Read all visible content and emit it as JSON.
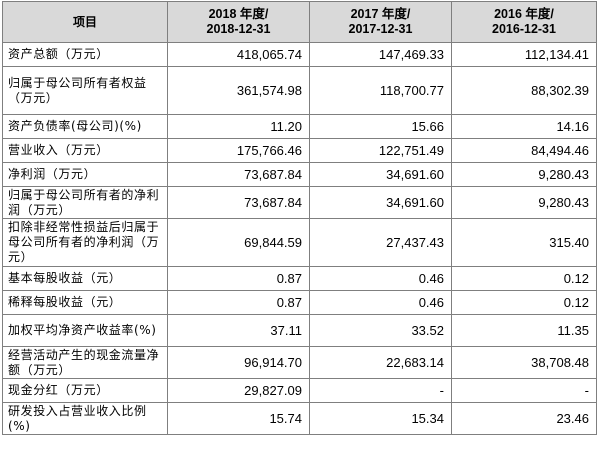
{
  "header": {
    "item": "项目",
    "col2018_l1": "2018 年度/",
    "col2018_l2": "2018-12-31",
    "col2017_l1": "2017 年度/",
    "col2017_l2": "2017-12-31",
    "col2016_l1": "2016 年度/",
    "col2016_l2": "2016-12-31"
  },
  "rows": [
    {
      "label": "资产总额（万元）",
      "y2018": "418,065.74",
      "y2017": "147,469.33",
      "y2016": "112,134.41"
    },
    {
      "label": "归属于母公司所有者权益（万元）",
      "y2018": "361,574.98",
      "y2017": "118,700.77",
      "y2016": "88,302.39"
    },
    {
      "label": "资产负债率(母公司)(%)",
      "y2018": "11.20",
      "y2017": "15.66",
      "y2016": "14.16"
    },
    {
      "label": "营业收入（万元）",
      "y2018": "175,766.46",
      "y2017": "122,751.49",
      "y2016": "84,494.46"
    },
    {
      "label": "净利润（万元）",
      "y2018": "73,687.84",
      "y2017": "34,691.60",
      "y2016": "9,280.43"
    },
    {
      "label": "归属于母公司所有者的净利润（万元）",
      "y2018": "73,687.84",
      "y2017": "34,691.60",
      "y2016": "9,280.43"
    },
    {
      "label": "扣除非经常性损益后归属于母公司所有者的净利润（万元）",
      "y2018": "69,844.59",
      "y2017": "27,437.43",
      "y2016": "315.40"
    },
    {
      "label": "基本每股收益（元）",
      "y2018": "0.87",
      "y2017": "0.46",
      "y2016": "0.12"
    },
    {
      "label": "稀释每股收益（元）",
      "y2018": "0.87",
      "y2017": "0.46",
      "y2016": "0.12"
    },
    {
      "label": "加权平均净资产收益率(%)",
      "y2018": "37.11",
      "y2017": "33.52",
      "y2016": "11.35"
    },
    {
      "label": "经营活动产生的现金流量净额（万元）",
      "y2018": "96,914.70",
      "y2017": "22,683.14",
      "y2016": "38,708.48"
    },
    {
      "label": "现金分红（万元）",
      "y2018": "29,827.09",
      "y2017": "-",
      "y2016": "-"
    },
    {
      "label": "研发投入占营业收入比例(%)",
      "y2018": "15.74",
      "y2017": "15.34",
      "y2016": "23.46"
    }
  ]
}
